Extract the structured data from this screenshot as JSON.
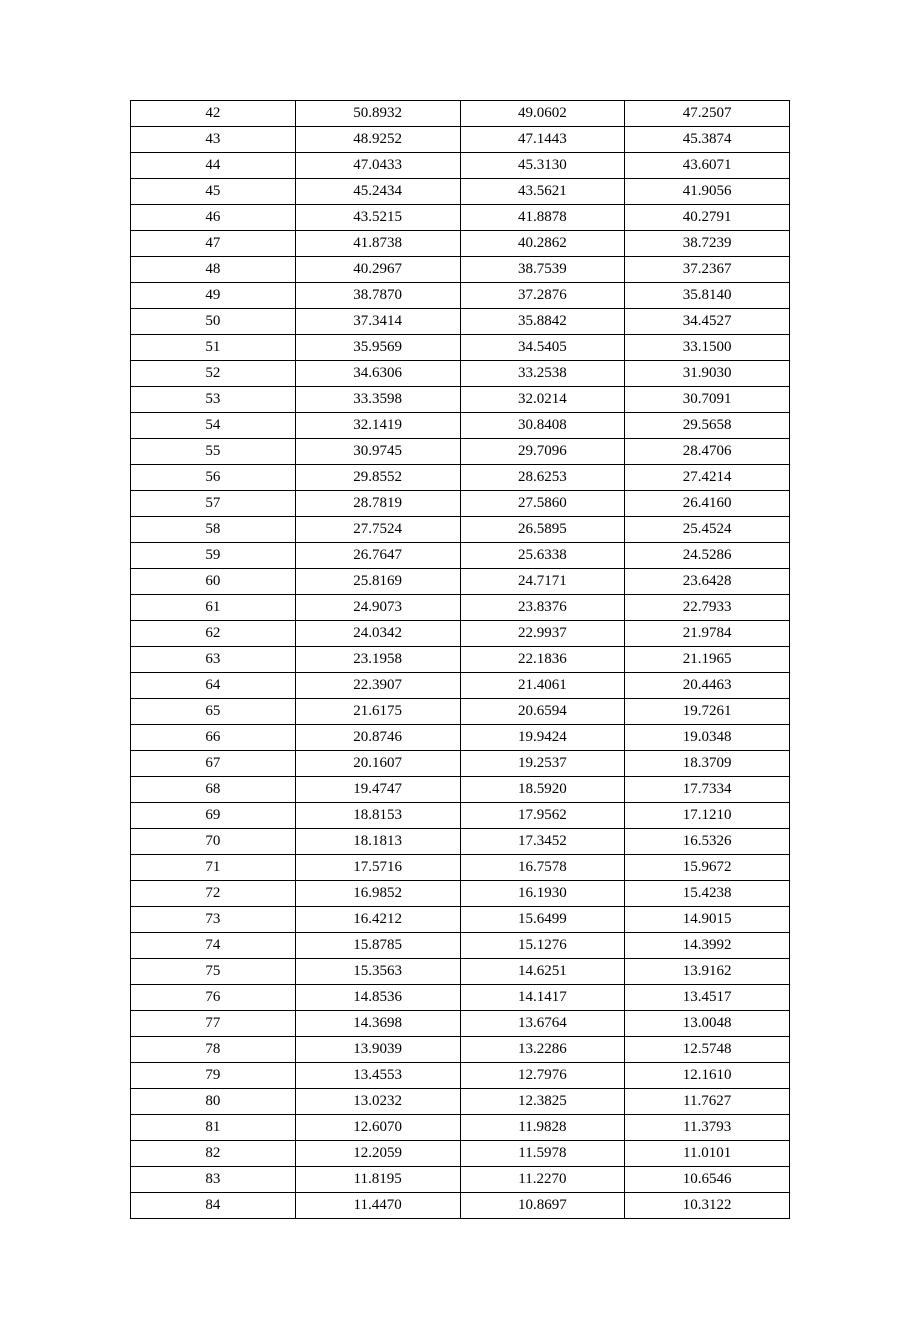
{
  "table": {
    "type": "table",
    "background_color": "#ffffff",
    "border_color": "#000000",
    "text_color": "#000000",
    "font_family": "Times New Roman",
    "font_size_pt": 11,
    "column_widths_pct": [
      25,
      25,
      25,
      25
    ],
    "column_alignment": [
      "center",
      "center",
      "center",
      "center"
    ],
    "rows": [
      [
        "42",
        "50.8932",
        "49.0602",
        "47.2507"
      ],
      [
        "43",
        "48.9252",
        "47.1443",
        "45.3874"
      ],
      [
        "44",
        "47.0433",
        "45.3130",
        "43.6071"
      ],
      [
        "45",
        "45.2434",
        "43.5621",
        "41.9056"
      ],
      [
        "46",
        "43.5215",
        "41.8878",
        "40.2791"
      ],
      [
        "47",
        "41.8738",
        "40.2862",
        "38.7239"
      ],
      [
        "48",
        "40.2967",
        "38.7539",
        "37.2367"
      ],
      [
        "49",
        "38.7870",
        "37.2876",
        "35.8140"
      ],
      [
        "50",
        "37.3414",
        "35.8842",
        "34.4527"
      ],
      [
        "51",
        "35.9569",
        "34.5405",
        "33.1500"
      ],
      [
        "52",
        "34.6306",
        "33.2538",
        "31.9030"
      ],
      [
        "53",
        "33.3598",
        "32.0214",
        "30.7091"
      ],
      [
        "54",
        "32.1419",
        "30.8408",
        "29.5658"
      ],
      [
        "55",
        "30.9745",
        "29.7096",
        "28.4706"
      ],
      [
        "56",
        "29.8552",
        "28.6253",
        "27.4214"
      ],
      [
        "57",
        "28.7819",
        "27.5860",
        "26.4160"
      ],
      [
        "58",
        "27.7524",
        "26.5895",
        "25.4524"
      ],
      [
        "59",
        "26.7647",
        "25.6338",
        "24.5286"
      ],
      [
        "60",
        "25.8169",
        "24.7171",
        "23.6428"
      ],
      [
        "61",
        "24.9073",
        "23.8376",
        "22.7933"
      ],
      [
        "62",
        "24.0342",
        "22.9937",
        "21.9784"
      ],
      [
        "63",
        "23.1958",
        "22.1836",
        "21.1965"
      ],
      [
        "64",
        "22.3907",
        "21.4061",
        "20.4463"
      ],
      [
        "65",
        "21.6175",
        "20.6594",
        "19.7261"
      ],
      [
        "66",
        "20.8746",
        "19.9424",
        "19.0348"
      ],
      [
        "67",
        "20.1607",
        "19.2537",
        "18.3709"
      ],
      [
        "68",
        "19.4747",
        "18.5920",
        "17.7334"
      ],
      [
        "69",
        "18.8153",
        "17.9562",
        "17.1210"
      ],
      [
        "70",
        "18.1813",
        "17.3452",
        "16.5326"
      ],
      [
        "71",
        "17.5716",
        "16.7578",
        "15.9672"
      ],
      [
        "72",
        "16.9852",
        "16.1930",
        "15.4238"
      ],
      [
        "73",
        "16.4212",
        "15.6499",
        "14.9015"
      ],
      [
        "74",
        "15.8785",
        "15.1276",
        "14.3992"
      ],
      [
        "75",
        "15.3563",
        "14.6251",
        "13.9162"
      ],
      [
        "76",
        "14.8536",
        "14.1417",
        "13.4517"
      ],
      [
        "77",
        "14.3698",
        "13.6764",
        "13.0048"
      ],
      [
        "78",
        "13.9039",
        "13.2286",
        "12.5748"
      ],
      [
        "79",
        "13.4553",
        "12.7976",
        "12.1610"
      ],
      [
        "80",
        "13.0232",
        "12.3825",
        "11.7627"
      ],
      [
        "81",
        "12.6070",
        "11.9828",
        "11.3793"
      ],
      [
        "82",
        "12.2059",
        "11.5978",
        "11.0101"
      ],
      [
        "83",
        "11.8195",
        "11.2270",
        "10.6546"
      ],
      [
        "84",
        "11.4470",
        "10.8697",
        "10.3122"
      ]
    ]
  }
}
